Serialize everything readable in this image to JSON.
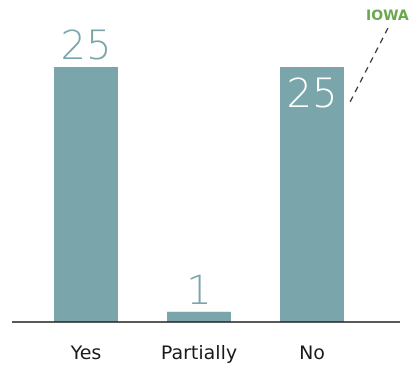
{
  "colors": {
    "bar": "#7aa6ab",
    "value_outside": "#7aa6ab",
    "value_inside": "#ffffff",
    "axis": "#222222",
    "callout": "#6aa84f",
    "callout_line": "#333333"
  },
  "chart_data": {
    "type": "bar",
    "title": "",
    "xlabel": "",
    "ylabel": "",
    "categories": [
      "Yes",
      "Partially",
      "No"
    ],
    "values": [
      25,
      1,
      25
    ],
    "data_labels": [
      "25",
      "1",
      "25"
    ],
    "ylim": [
      0,
      30
    ],
    "grid": false,
    "legend": "none",
    "annotations": [
      {
        "text": "IOWA",
        "category": "No",
        "style": "dashed-callout"
      }
    ]
  }
}
